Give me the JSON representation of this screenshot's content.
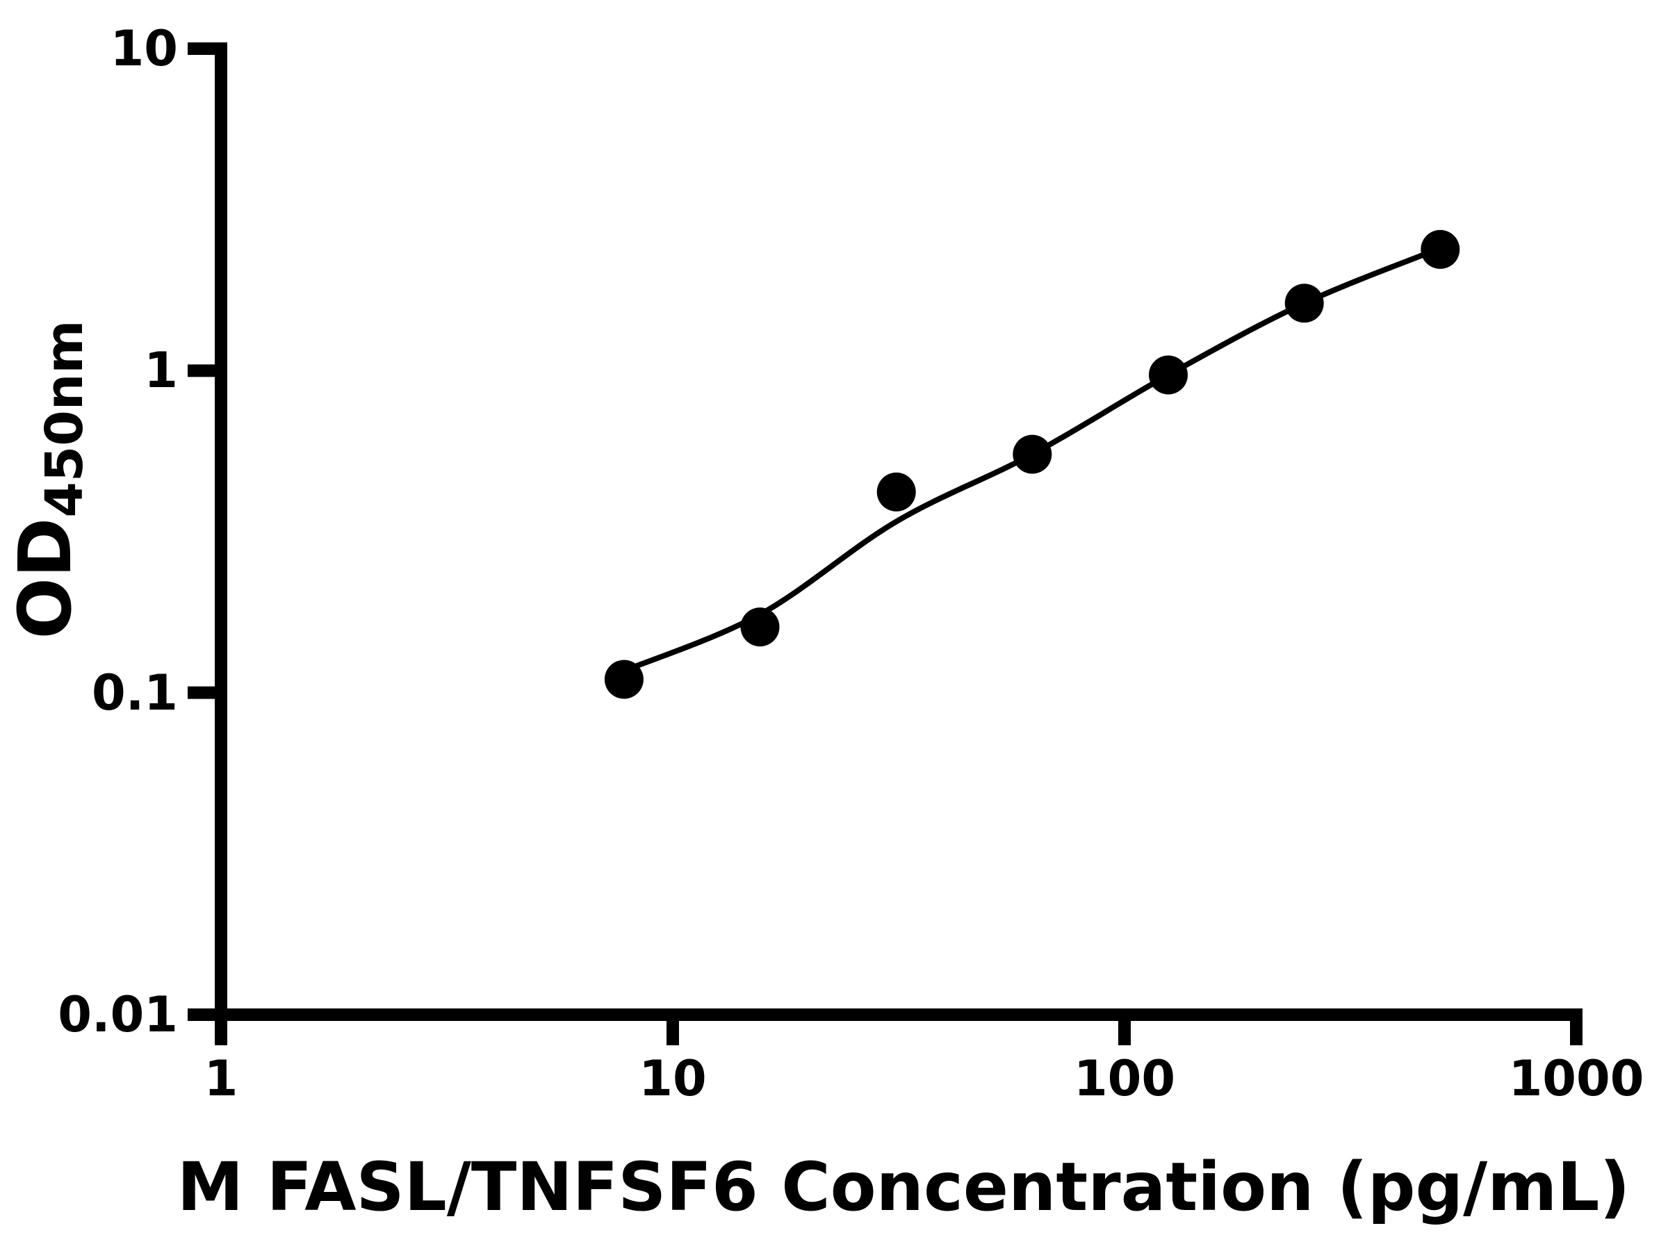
{
  "figure": {
    "background": "#ffffff"
  },
  "chart_data": {
    "type": "scatter",
    "title": "",
    "xlabel": "M FASL/TNFSF6 Concentration (pg/mL)",
    "ylabel_main": "OD",
    "ylabel_subscript": "450nm",
    "x_scale": "log",
    "y_scale": "log",
    "xlim": [
      1,
      1000
    ],
    "ylim": [
      0.01,
      10
    ],
    "x_ticks": [
      1,
      10,
      100,
      1000
    ],
    "x_tick_labels": [
      "1",
      "10",
      "100",
      "1000"
    ],
    "y_ticks": [
      10,
      1,
      0.1,
      0.01
    ],
    "y_tick_labels": [
      "10",
      "1",
      "0.1",
      "0.01"
    ],
    "grid": false,
    "legend": false,
    "marker_color": "#000000",
    "line_color": "#000000",
    "axis_color": "#000000",
    "series": [
      {
        "name": "standard-curve-points",
        "x": [
          7.8,
          15.6,
          31.25,
          62.5,
          125,
          250,
          500
        ],
        "y": [
          0.11,
          0.16,
          0.42,
          0.55,
          0.97,
          1.62,
          2.38
        ]
      }
    ],
    "fit_curve": [
      [
        7.8,
        0.117
      ],
      [
        15.6,
        0.175
      ],
      [
        31.25,
        0.34
      ],
      [
        62.5,
        0.55
      ],
      [
        125,
        0.97
      ],
      [
        250,
        1.62
      ],
      [
        500,
        2.4
      ]
    ]
  }
}
